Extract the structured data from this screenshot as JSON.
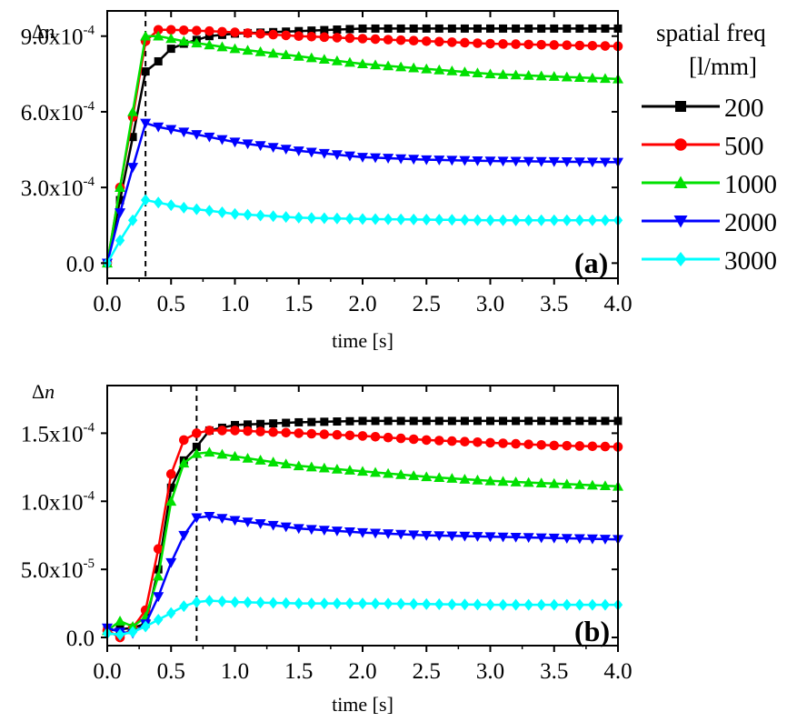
{
  "chart_data": [
    {
      "type": "line",
      "panel_label": "(a)",
      "ylabel": "Δn",
      "xlabel": "time [s]",
      "xlim": [
        0,
        4.0
      ],
      "ylim": [
        -6e-05,
        0.001
      ],
      "xticks": [
        "0.0",
        "0.5",
        "1.0",
        "1.5",
        "2.0",
        "2.5",
        "3.0",
        "3.5",
        "4.0"
      ],
      "yticks": [
        {
          "value": 0,
          "mantissa": "0.0",
          "exponent": ""
        },
        {
          "value": 0.0003,
          "mantissa": "3.0x10",
          "exponent": "-4"
        },
        {
          "value": 0.0006,
          "mantissa": "6.0x10",
          "exponent": "-4"
        },
        {
          "value": 0.0009,
          "mantissa": "9.0x10",
          "exponent": "-4"
        }
      ],
      "vline_x": 0.3,
      "series": [
        {
          "name": "200",
          "color": "#000000",
          "marker": "square",
          "points": [
            [
              0,
              0
            ],
            [
              0.1,
              0.00025
            ],
            [
              0.2,
              0.0005
            ],
            [
              0.3,
              0.00076
            ],
            [
              0.4,
              0.0008
            ],
            [
              0.5,
              0.00085
            ],
            [
              0.6,
              0.00087
            ],
            [
              0.8,
              0.0009
            ],
            [
              1.0,
              0.00091
            ],
            [
              1.5,
              0.00092
            ],
            [
              2.0,
              0.00093
            ],
            [
              3.0,
              0.00093
            ],
            [
              4.0,
              0.00093
            ]
          ]
        },
        {
          "name": "500",
          "color": "#ff0000",
          "marker": "circle",
          "points": [
            [
              0,
              0
            ],
            [
              0.1,
              0.0003
            ],
            [
              0.2,
              0.00058
            ],
            [
              0.3,
              0.00088
            ],
            [
              0.4,
              0.000925
            ],
            [
              0.5,
              0.000925
            ],
            [
              0.8,
              0.00092
            ],
            [
              1.0,
              0.000915
            ],
            [
              1.5,
              0.0009
            ],
            [
              2.0,
              0.00089
            ],
            [
              3.0,
              0.00087
            ],
            [
              4.0,
              0.00086
            ]
          ]
        },
        {
          "name": "1000",
          "color": "#00e000",
          "marker": "triangle-up",
          "points": [
            [
              0,
              0
            ],
            [
              0.1,
              0.0003
            ],
            [
              0.2,
              0.0006
            ],
            [
              0.3,
              0.0009
            ],
            [
              0.4,
              0.0009
            ],
            [
              0.6,
              0.00088
            ],
            [
              1.0,
              0.00085
            ],
            [
              1.5,
              0.00082
            ],
            [
              2.0,
              0.00079
            ],
            [
              2.5,
              0.00077
            ],
            [
              3.0,
              0.00075
            ],
            [
              3.5,
              0.00074
            ],
            [
              4.0,
              0.00073
            ]
          ]
        },
        {
          "name": "2000",
          "color": "#0000ff",
          "marker": "triangle-down",
          "points": [
            [
              0,
              0
            ],
            [
              0.1,
              0.0002
            ],
            [
              0.2,
              0.00038
            ],
            [
              0.3,
              0.000555
            ],
            [
              0.4,
              0.00054
            ],
            [
              0.6,
              0.00052
            ],
            [
              1.0,
              0.00048
            ],
            [
              1.5,
              0.000445
            ],
            [
              2.0,
              0.00042
            ],
            [
              2.5,
              0.00041
            ],
            [
              3.0,
              0.000405
            ],
            [
              4.0,
              0.0004
            ]
          ]
        },
        {
          "name": "3000",
          "color": "#00ffff",
          "marker": "diamond",
          "points": [
            [
              0,
              0
            ],
            [
              0.1,
              9e-05
            ],
            [
              0.2,
              0.00017
            ],
            [
              0.3,
              0.00025
            ],
            [
              0.4,
              0.00024
            ],
            [
              0.6,
              0.00022
            ],
            [
              1.0,
              0.000195
            ],
            [
              1.5,
              0.00018
            ],
            [
              2.0,
              0.000175
            ],
            [
              3.0,
              0.00017
            ],
            [
              4.0,
              0.00017
            ]
          ]
        }
      ]
    },
    {
      "type": "line",
      "panel_label": "(b)",
      "ylabel": "Δn",
      "xlabel": "time [s]",
      "xlim": [
        0,
        4.0
      ],
      "ylim": [
        -6e-06,
        0.000185
      ],
      "xticks": [
        "0.0",
        "0.5",
        "1.0",
        "1.5",
        "2.0",
        "2.5",
        "3.0",
        "3.5",
        "4.0"
      ],
      "yticks": [
        {
          "value": 0,
          "mantissa": "0.0",
          "exponent": ""
        },
        {
          "value": 5e-05,
          "mantissa": "5.0x10",
          "exponent": "-5"
        },
        {
          "value": 0.0001,
          "mantissa": "1.0x10",
          "exponent": "-4"
        },
        {
          "value": 0.00015,
          "mantissa": "1.5x10",
          "exponent": "-4"
        }
      ],
      "vline_x": 0.7,
      "series": [
        {
          "name": "200",
          "color": "#000000",
          "marker": "square",
          "points": [
            [
              0,
              5e-06
            ],
            [
              0.2,
              7e-06
            ],
            [
              0.3,
              1e-05
            ],
            [
              0.4,
              5e-05
            ],
            [
              0.5,
              0.00011
            ],
            [
              0.6,
              0.00013
            ],
            [
              0.7,
              0.00014
            ],
            [
              0.8,
              0.000152
            ],
            [
              1.0,
              0.000156
            ],
            [
              1.5,
              0.000158
            ],
            [
              2.0,
              0.000159
            ],
            [
              3.0,
              0.000159
            ],
            [
              4.0,
              0.000159
            ]
          ]
        },
        {
          "name": "500",
          "color": "#ff0000",
          "marker": "circle",
          "points": [
            [
              0,
              5e-06
            ],
            [
              0.1,
              0
            ],
            [
              0.2,
              7e-06
            ],
            [
              0.3,
              2e-05
            ],
            [
              0.4,
              6.5e-05
            ],
            [
              0.5,
              0.00012
            ],
            [
              0.6,
              0.000145
            ],
            [
              0.7,
              0.00015
            ],
            [
              0.8,
              0.000152
            ],
            [
              1.0,
              0.000152
            ],
            [
              1.5,
              0.00015
            ],
            [
              2.0,
              0.000148
            ],
            [
              2.5,
              0.000145
            ],
            [
              3.0,
              0.000143
            ],
            [
              3.5,
              0.000141
            ],
            [
              4.0,
              0.00014
            ]
          ]
        },
        {
          "name": "1000",
          "color": "#00e000",
          "marker": "triangle-up",
          "points": [
            [
              0,
              5e-06
            ],
            [
              0.1,
              1.2e-05
            ],
            [
              0.2,
              8e-06
            ],
            [
              0.3,
              1.5e-05
            ],
            [
              0.4,
              4.5e-05
            ],
            [
              0.5,
              0.0001
            ],
            [
              0.6,
              0.000128
            ],
            [
              0.7,
              0.000135
            ],
            [
              0.8,
              0.000136
            ],
            [
              1.0,
              0.000133
            ],
            [
              1.5,
              0.000126
            ],
            [
              2.0,
              0.000122
            ],
            [
              2.5,
              0.000118
            ],
            [
              3.0,
              0.000115
            ],
            [
              3.5,
              0.000113
            ],
            [
              4.0,
              0.000111
            ]
          ]
        },
        {
          "name": "2000",
          "color": "#0000ff",
          "marker": "triangle-down",
          "points": [
            [
              0,
              7e-06
            ],
            [
              0.1,
              4e-06
            ],
            [
              0.2,
              3e-06
            ],
            [
              0.3,
              1e-05
            ],
            [
              0.4,
              3e-05
            ],
            [
              0.5,
              5.5e-05
            ],
            [
              0.6,
              7.5e-05
            ],
            [
              0.7,
              8.8e-05
            ],
            [
              0.8,
              8.9e-05
            ],
            [
              1.0,
              8.6e-05
            ],
            [
              1.5,
              8e-05
            ],
            [
              2.0,
              7.7e-05
            ],
            [
              2.5,
              7.5e-05
            ],
            [
              3.0,
              7.4e-05
            ],
            [
              4.0,
              7.2e-05
            ]
          ]
        },
        {
          "name": "3000",
          "color": "#00ffff",
          "marker": "diamond",
          "points": [
            [
              0,
              3e-06
            ],
            [
              0.1,
              2e-06
            ],
            [
              0.2,
              4e-06
            ],
            [
              0.3,
              8e-06
            ],
            [
              0.4,
              1.3e-05
            ],
            [
              0.5,
              1.8e-05
            ],
            [
              0.6,
              2.3e-05
            ],
            [
              0.7,
              2.6e-05
            ],
            [
              0.8,
              2.7e-05
            ],
            [
              1.0,
              2.6e-05
            ],
            [
              1.5,
              2.5e-05
            ],
            [
              2.0,
              2.5e-05
            ],
            [
              3.0,
              2.4e-05
            ],
            [
              4.0,
              2.4e-05
            ]
          ]
        }
      ]
    }
  ],
  "legend": {
    "title_line1": "spatial freq",
    "title_line2": "[l/mm]",
    "items": [
      {
        "label": "200",
        "color": "#000000",
        "marker": "square"
      },
      {
        "label": "500",
        "color": "#ff0000",
        "marker": "circle"
      },
      {
        "label": "1000",
        "color": "#00e000",
        "marker": "triangle-up"
      },
      {
        "label": "2000",
        "color": "#0000ff",
        "marker": "triangle-down"
      },
      {
        "label": "3000",
        "color": "#00ffff",
        "marker": "diamond"
      }
    ]
  }
}
